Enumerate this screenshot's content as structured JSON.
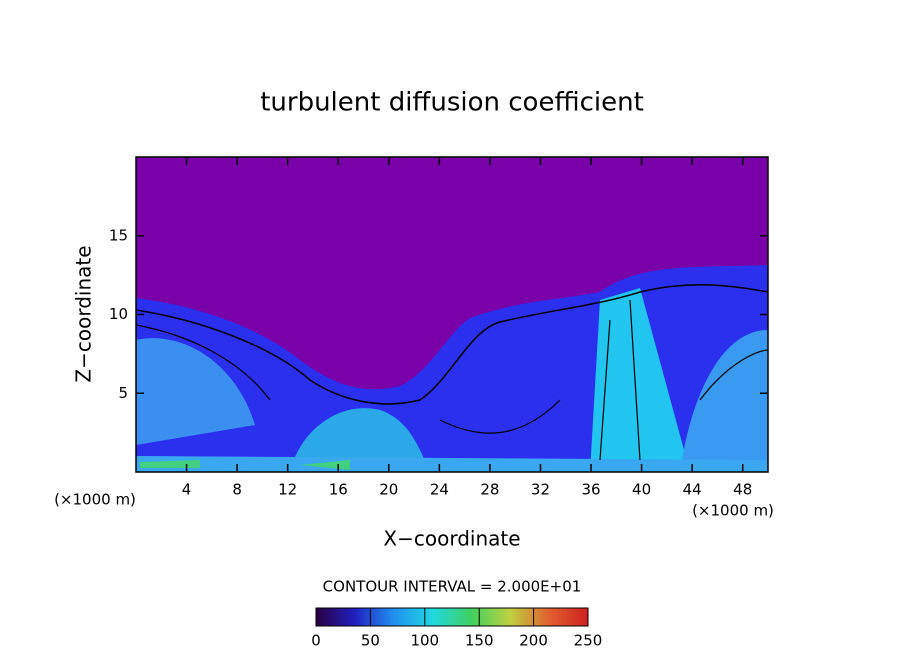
{
  "chart_data": {
    "type": "contour",
    "title": "turbulent diffusion coefficient",
    "xlabel": "X−coordinate",
    "ylabel": "Z−coordinate",
    "x_unit_label": "(×1000 m)",
    "y_unit_label": "(×1000 m)",
    "xlim": [
      0,
      50
    ],
    "xticks": [
      4,
      8,
      12,
      16,
      20,
      24,
      28,
      32,
      36,
      40,
      44,
      48
    ],
    "ylim": [
      0,
      20
    ],
    "yticks": [
      5,
      10,
      15
    ],
    "contour_interval_label": "CONTOUR INTERVAL = 2.000E+01",
    "colorbar": {
      "lim": [
        0,
        250
      ],
      "ticks": [
        0,
        50,
        100,
        150,
        200,
        250
      ],
      "colors": [
        "#2a0040",
        "#2020c0",
        "#2090f0",
        "#20d8e0",
        "#40d060",
        "#c0d040",
        "#e06030",
        "#d02020"
      ]
    }
  }
}
